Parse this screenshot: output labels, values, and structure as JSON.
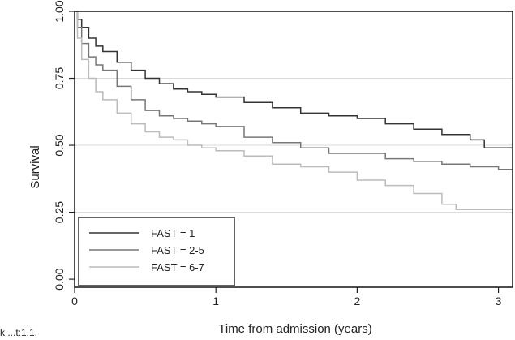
{
  "chart_data": {
    "type": "line",
    "xlabel": "Time from admission (years)",
    "ylabel": "Survival",
    "xlim": [
      0,
      3.1
    ],
    "ylim": [
      0,
      1.0
    ],
    "x_ticks": [
      "0",
      "1",
      "2",
      "3"
    ],
    "y_ticks": [
      "0.00",
      "0.25",
      "0.50",
      "0.75",
      "1.00"
    ],
    "grid": "horizontal",
    "legend_position": "bottom-left",
    "corner_text": "k ...t:1.1.",
    "series": [
      {
        "name": "FAST = 1",
        "color": "#333333",
        "x": [
          0,
          0.02,
          0.05,
          0.1,
          0.15,
          0.2,
          0.3,
          0.4,
          0.5,
          0.6,
          0.7,
          0.8,
          0.9,
          1.0,
          1.2,
          1.4,
          1.6,
          1.8,
          2.0,
          2.2,
          2.4,
          2.6,
          2.8,
          2.9,
          3.1
        ],
        "y": [
          1.0,
          0.97,
          0.94,
          0.9,
          0.87,
          0.85,
          0.81,
          0.78,
          0.75,
          0.73,
          0.71,
          0.7,
          0.69,
          0.68,
          0.66,
          0.64,
          0.62,
          0.61,
          0.6,
          0.58,
          0.56,
          0.54,
          0.52,
          0.49,
          0.49
        ]
      },
      {
        "name": "FAST = 2-5",
        "color": "#777777",
        "x": [
          0,
          0.02,
          0.05,
          0.1,
          0.15,
          0.2,
          0.3,
          0.4,
          0.5,
          0.6,
          0.7,
          0.8,
          0.9,
          1.0,
          1.2,
          1.4,
          1.6,
          1.8,
          2.0,
          2.2,
          2.4,
          2.6,
          2.8,
          3.0,
          3.1
        ],
        "y": [
          1.0,
          0.94,
          0.88,
          0.83,
          0.8,
          0.78,
          0.72,
          0.67,
          0.63,
          0.61,
          0.6,
          0.59,
          0.58,
          0.57,
          0.53,
          0.51,
          0.49,
          0.47,
          0.47,
          0.45,
          0.44,
          0.43,
          0.42,
          0.41,
          0.41
        ]
      },
      {
        "name": "FAST = 6-7",
        "color": "#bbbbbb",
        "x": [
          0,
          0.02,
          0.05,
          0.1,
          0.15,
          0.2,
          0.3,
          0.4,
          0.5,
          0.6,
          0.7,
          0.8,
          0.9,
          1.0,
          1.2,
          1.4,
          1.6,
          1.8,
          2.0,
          2.2,
          2.4,
          2.6,
          2.7,
          2.8,
          3.1
        ],
        "y": [
          1.0,
          0.9,
          0.82,
          0.75,
          0.7,
          0.67,
          0.62,
          0.58,
          0.55,
          0.53,
          0.52,
          0.5,
          0.49,
          0.48,
          0.46,
          0.43,
          0.42,
          0.4,
          0.37,
          0.35,
          0.32,
          0.28,
          0.26,
          0.26,
          0.26
        ]
      }
    ]
  }
}
